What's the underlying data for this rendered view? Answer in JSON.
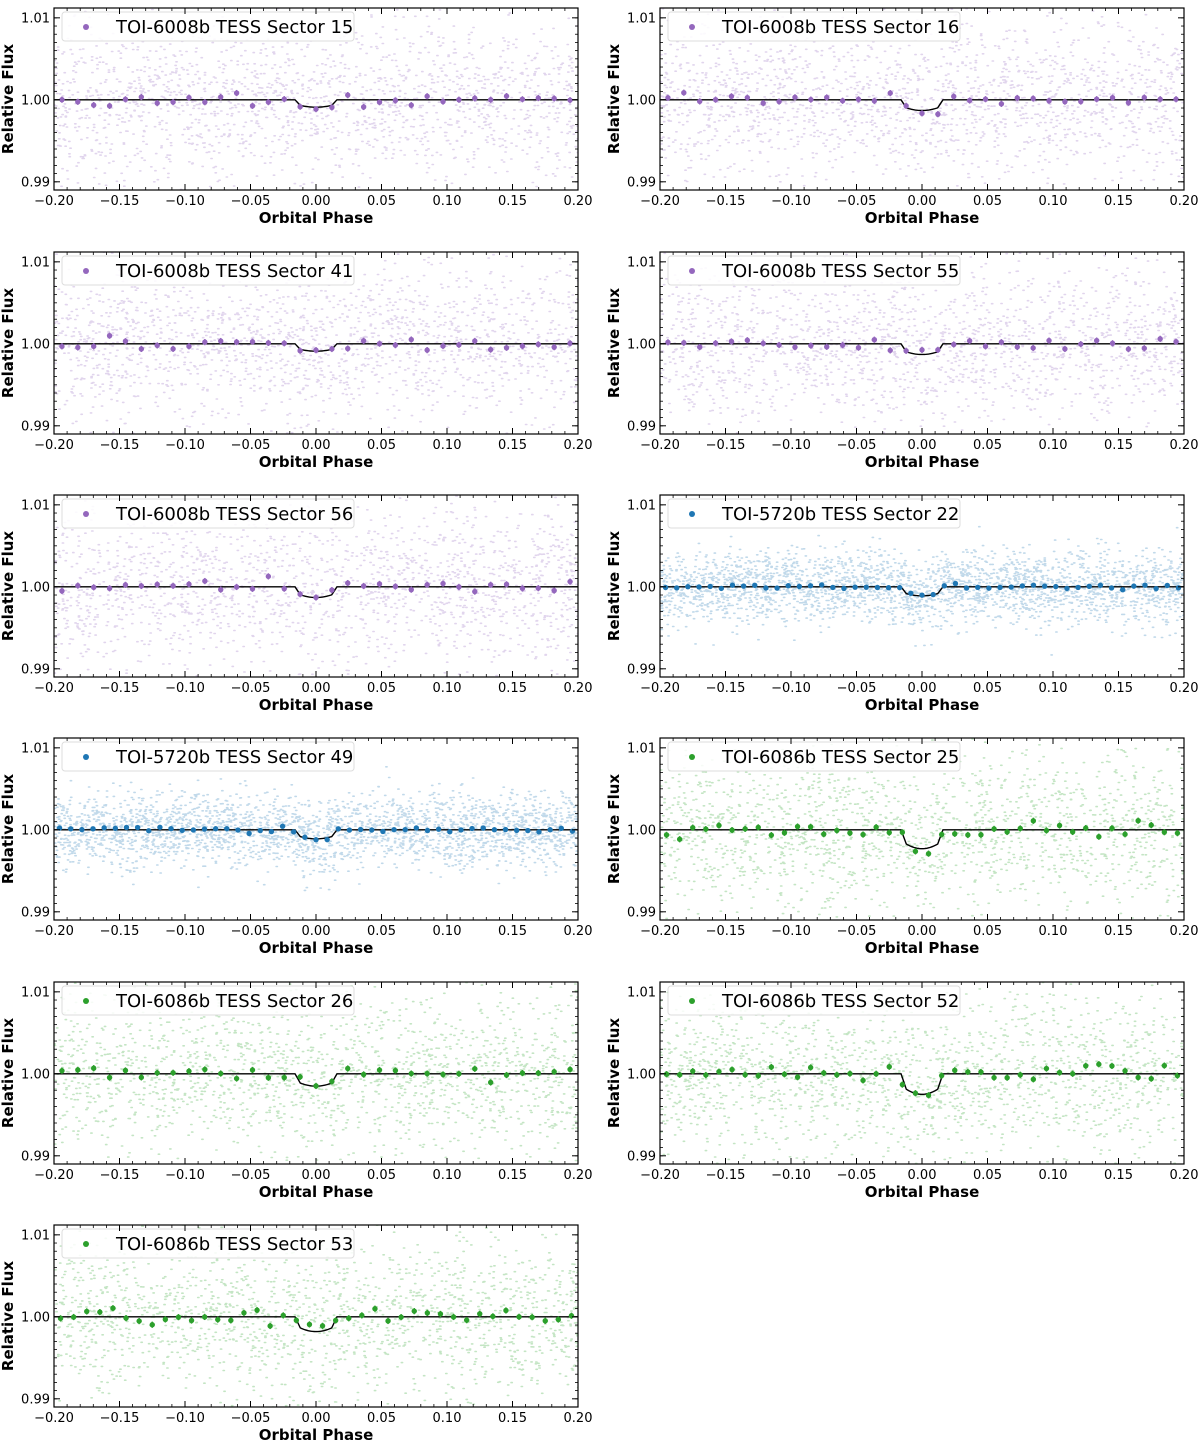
{
  "figure": {
    "xlabel": "Orbital Phase",
    "ylabel": "Relative Flux"
  },
  "colors": {
    "TOI-6008b": "#9467bd",
    "TOI-5720b": "#1f77b4",
    "TOI-6086b": "#2ca02c",
    "model": "#000000"
  },
  "chart_data": [
    {
      "type": "scatter",
      "legend": "TOI-6008b TESS Sector 15",
      "planet": "TOI-6008b",
      "depth": 0.0009,
      "xlim": [
        -0.2,
        0.2
      ],
      "ylim": [
        0.989,
        1.0112
      ],
      "xticks": [
        -0.2,
        -0.15,
        -0.1,
        -0.05,
        0.0,
        0.05,
        0.1,
        0.15,
        0.2
      ],
      "xticklabels": [
        "−0.20",
        "−0.15",
        "−0.10",
        "−0.05",
        "0.00",
        "0.05",
        "0.10",
        "0.15",
        "0.20"
      ],
      "yticks": [
        0.99,
        1.0,
        1.01
      ],
      "yticklabels": [
        "0.99",
        "1.00",
        "1.01"
      ]
    },
    {
      "type": "scatter",
      "legend": "TOI-6008b TESS Sector 16",
      "planet": "TOI-6008b",
      "depth": 0.0013,
      "xlim": [
        -0.2,
        0.2
      ],
      "ylim": [
        0.989,
        1.0112
      ],
      "xticks": [
        -0.2,
        -0.15,
        -0.1,
        -0.05,
        0.0,
        0.05,
        0.1,
        0.15,
        0.2
      ],
      "xticklabels": [
        "−0.20",
        "−0.15",
        "−0.10",
        "−0.05",
        "0.00",
        "0.05",
        "0.10",
        "0.15",
        "0.20"
      ],
      "yticks": [
        0.99,
        1.0,
        1.01
      ],
      "yticklabels": [
        "0.99",
        "1.00",
        "1.01"
      ]
    },
    {
      "type": "scatter",
      "legend": "TOI-6008b TESS Sector 41",
      "planet": "TOI-6008b",
      "depth": 0.0009,
      "xlim": [
        -0.2,
        0.2
      ],
      "ylim": [
        0.989,
        1.0112
      ],
      "xticks": [
        -0.2,
        -0.15,
        -0.1,
        -0.05,
        0.0,
        0.05,
        0.1,
        0.15,
        0.2
      ],
      "xticklabels": [
        "−0.20",
        "−0.15",
        "−0.10",
        "−0.05",
        "0.00",
        "0.05",
        "0.10",
        "0.15",
        "0.20"
      ],
      "yticks": [
        0.99,
        1.0,
        1.01
      ],
      "yticklabels": [
        "0.99",
        "1.00",
        "1.01"
      ]
    },
    {
      "type": "scatter",
      "legend": "TOI-6008b TESS Sector 55",
      "planet": "TOI-6008b",
      "depth": 0.0013,
      "xlim": [
        -0.2,
        0.2
      ],
      "ylim": [
        0.989,
        1.0112
      ],
      "xticks": [
        -0.2,
        -0.15,
        -0.1,
        -0.05,
        0.0,
        0.05,
        0.1,
        0.15,
        0.2
      ],
      "xticklabels": [
        "−0.20",
        "−0.15",
        "−0.10",
        "−0.05",
        "0.00",
        "0.05",
        "0.10",
        "0.15",
        "0.20"
      ],
      "yticks": [
        0.99,
        1.0,
        1.01
      ],
      "yticklabels": [
        "0.99",
        "1.00",
        "1.01"
      ]
    },
    {
      "type": "scatter",
      "legend": "TOI-6008b TESS Sector 56",
      "planet": "TOI-6008b",
      "depth": 0.0013,
      "xlim": [
        -0.2,
        0.2
      ],
      "ylim": [
        0.989,
        1.0112
      ],
      "xticks": [
        -0.2,
        -0.15,
        -0.1,
        -0.05,
        0.0,
        0.05,
        0.1,
        0.15,
        0.2
      ],
      "xticklabels": [
        "−0.20",
        "−0.15",
        "−0.10",
        "−0.05",
        "0.00",
        "0.05",
        "0.10",
        "0.15",
        "0.20"
      ],
      "yticks": [
        0.99,
        1.0,
        1.01
      ],
      "yticklabels": [
        "0.99",
        "1.00",
        "1.01"
      ]
    },
    {
      "type": "scatter",
      "legend": "TOI-5720b TESS Sector 22",
      "planet": "TOI-5720b",
      "depth": 0.0011,
      "xlim": [
        -0.2,
        0.2
      ],
      "ylim": [
        0.989,
        1.0112
      ],
      "xticks": [
        -0.2,
        -0.15,
        -0.1,
        -0.05,
        0.0,
        0.05,
        0.1,
        0.15,
        0.2
      ],
      "xticklabels": [
        "−0.20",
        "−0.15",
        "−0.10",
        "−0.05",
        "0.00",
        "0.05",
        "0.10",
        "0.15",
        "0.20"
      ],
      "yticks": [
        0.99,
        1.0,
        1.01
      ],
      "yticklabels": [
        "0.99",
        "1.00",
        "1.01"
      ]
    },
    {
      "type": "scatter",
      "legend": "TOI-5720b TESS Sector 49",
      "planet": "TOI-5720b",
      "depth": 0.0011,
      "xlim": [
        -0.2,
        0.2
      ],
      "ylim": [
        0.989,
        1.0112
      ],
      "xticks": [
        -0.2,
        -0.15,
        -0.1,
        -0.05,
        0.0,
        0.05,
        0.1,
        0.15,
        0.2
      ],
      "xticklabels": [
        "−0.20",
        "−0.15",
        "−0.10",
        "−0.05",
        "0.00",
        "0.05",
        "0.10",
        "0.15",
        "0.20"
      ],
      "yticks": [
        0.99,
        1.0,
        1.01
      ],
      "yticklabels": [
        "0.99",
        "1.00",
        "1.01"
      ]
    },
    {
      "type": "scatter",
      "legend": "TOI-6086b TESS Sector 25",
      "planet": "TOI-6086b",
      "depth": 0.0023,
      "xlim": [
        -0.2,
        0.2
      ],
      "ylim": [
        0.989,
        1.0112
      ],
      "xticks": [
        -0.2,
        -0.15,
        -0.1,
        -0.05,
        0.0,
        0.05,
        0.1,
        0.15,
        0.2
      ],
      "xticklabels": [
        "−0.20",
        "−0.15",
        "−0.10",
        "−0.05",
        "0.00",
        "0.05",
        "0.10",
        "0.15",
        "0.20"
      ],
      "yticks": [
        0.99,
        1.0,
        1.01
      ],
      "yticklabels": [
        "0.99",
        "1.00",
        "1.01"
      ]
    },
    {
      "type": "scatter",
      "legend": "TOI-6086b TESS Sector 26",
      "planet": "TOI-6086b",
      "depth": 0.0015,
      "xlim": [
        -0.2,
        0.2
      ],
      "ylim": [
        0.989,
        1.0112
      ],
      "xticks": [
        -0.2,
        -0.15,
        -0.1,
        -0.05,
        0.0,
        0.05,
        0.1,
        0.15,
        0.2
      ],
      "xticklabels": [
        "−0.20",
        "−0.15",
        "−0.10",
        "−0.05",
        "0.00",
        "0.05",
        "0.10",
        "0.15",
        "0.20"
      ],
      "yticks": [
        0.99,
        1.0,
        1.01
      ],
      "yticklabels": [
        "0.99",
        "1.00",
        "1.01"
      ]
    },
    {
      "type": "scatter",
      "legend": "TOI-6086b TESS Sector 52",
      "planet": "TOI-6086b",
      "depth": 0.0025,
      "xlim": [
        -0.2,
        0.2
      ],
      "ylim": [
        0.989,
        1.0112
      ],
      "xticks": [
        -0.2,
        -0.15,
        -0.1,
        -0.05,
        0.0,
        0.05,
        0.1,
        0.15,
        0.2
      ],
      "xticklabels": [
        "−0.20",
        "−0.15",
        "−0.10",
        "−0.05",
        "0.00",
        "0.05",
        "0.10",
        "0.15",
        "0.20"
      ],
      "yticks": [
        0.99,
        1.0,
        1.01
      ],
      "yticklabels": [
        "0.99",
        "1.00",
        "1.01"
      ]
    },
    {
      "type": "scatter",
      "legend": "TOI-6086b TESS Sector 53",
      "planet": "TOI-6086b",
      "depth": 0.0018,
      "xlim": [
        -0.2,
        0.2
      ],
      "ylim": [
        0.989,
        1.0112
      ],
      "xticks": [
        -0.2,
        -0.15,
        -0.1,
        -0.05,
        0.0,
        0.05,
        0.1,
        0.15,
        0.2
      ],
      "xticklabels": [
        "−0.20",
        "−0.15",
        "−0.10",
        "−0.05",
        "0.00",
        "0.05",
        "0.10",
        "0.15",
        "0.20"
      ],
      "yticks": [
        0.99,
        1.0,
        1.01
      ],
      "yticklabels": [
        "0.99",
        "1.00",
        "1.01"
      ]
    }
  ]
}
